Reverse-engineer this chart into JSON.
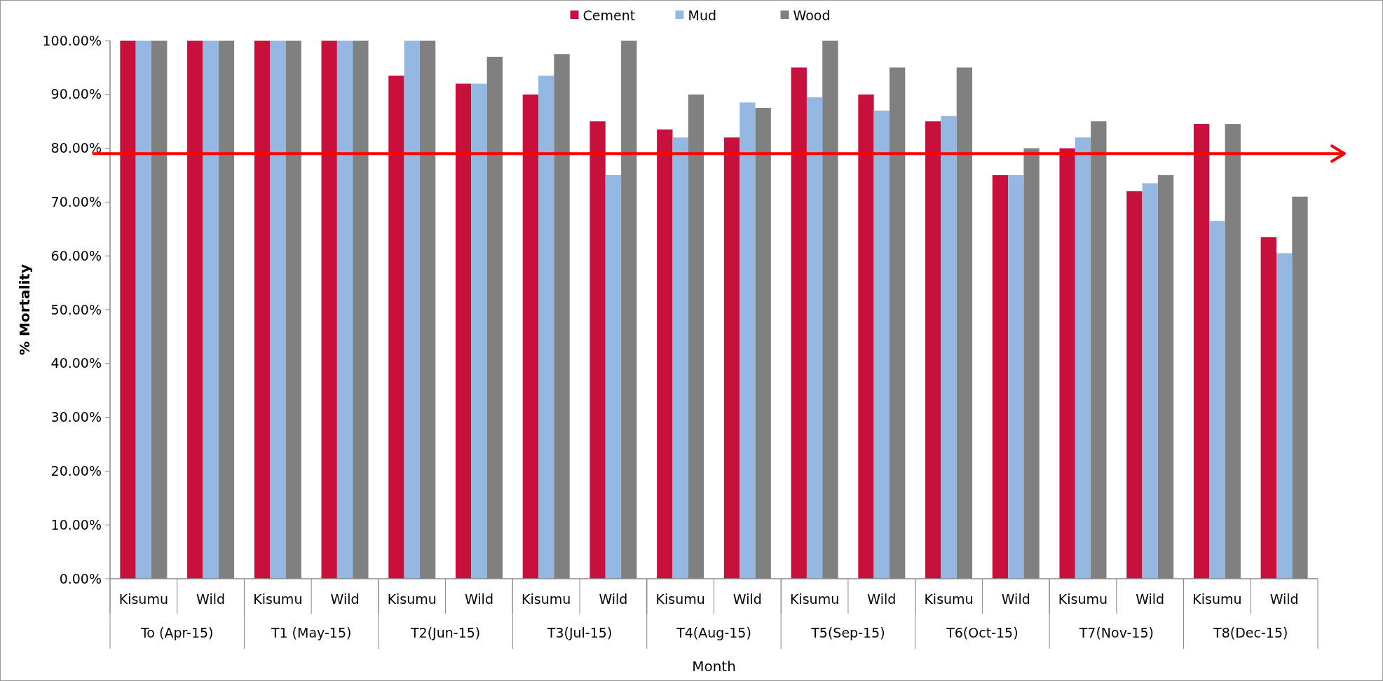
{
  "chart_data": {
    "type": "bar",
    "xlabel": "Month",
    "ylabel": "% Mortality",
    "categories": [
      "Kisumu",
      "Wild",
      "Kisumu",
      "Wild",
      "Kisumu",
      "Wild",
      "Kisumu",
      "Wild",
      "Kisumu",
      "Wild",
      "Kisumu",
      "Wild",
      "Kisumu",
      "Wild",
      "Kisumu",
      "Wild",
      "Kisumu",
      "Wild"
    ],
    "annotations": [
      "To (Apr-15)",
      "T1 (May-15)",
      "T2(Jun-15)",
      "T3(Jul-15)",
      "T4(Aug-15)",
      "T5(Sep-15)",
      "T6(Oct-15)",
      "T7(Nov-15)",
      "T8(Dec-15)"
    ],
    "series": [
      {
        "name": "Cement",
        "color": "#c8103c",
        "values": [
          100,
          100,
          100,
          100,
          93.5,
          92,
          90,
          85,
          83.5,
          82,
          95,
          90,
          85,
          75,
          80,
          72,
          84.5,
          63.5
        ]
      },
      {
        "name": "Mud",
        "color": "#95b8e3",
        "values": [
          100,
          100,
          100,
          100,
          100,
          92,
          93.5,
          75,
          82,
          88.5,
          89.5,
          87,
          86,
          75,
          82,
          73.5,
          66.5,
          60.5
        ]
      },
      {
        "name": "Wood",
        "color": "#808080",
        "values": [
          100,
          100,
          100,
          100,
          100,
          97,
          97.5,
          100,
          90,
          87.5,
          100,
          95,
          95,
          80,
          85,
          75,
          84.5,
          71
        ]
      }
    ],
    "ylim": [
      0,
      100
    ],
    "yticks": [
      {
        "value": 0,
        "label": "0.00%"
      },
      {
        "value": 10,
        "label": "10.00%"
      },
      {
        "value": 20,
        "label": "20.00%"
      },
      {
        "value": 30,
        "label": "30.00%"
      },
      {
        "value": 40,
        "label": "40.00%"
      },
      {
        "value": 50,
        "label": "50.00%"
      },
      {
        "value": 60,
        "label": "60.00%"
      },
      {
        "value": 70,
        "label": "70.00%"
      },
      {
        "value": 80,
        "label": "80.00%"
      },
      {
        "value": 90,
        "label": "90.00%"
      },
      {
        "value": 100,
        "label": "100.00%"
      }
    ],
    "ref_lines": [
      {
        "axis": "y",
        "value": 79,
        "color": "#ff0000"
      }
    ],
    "grid": false,
    "legend": "top"
  }
}
